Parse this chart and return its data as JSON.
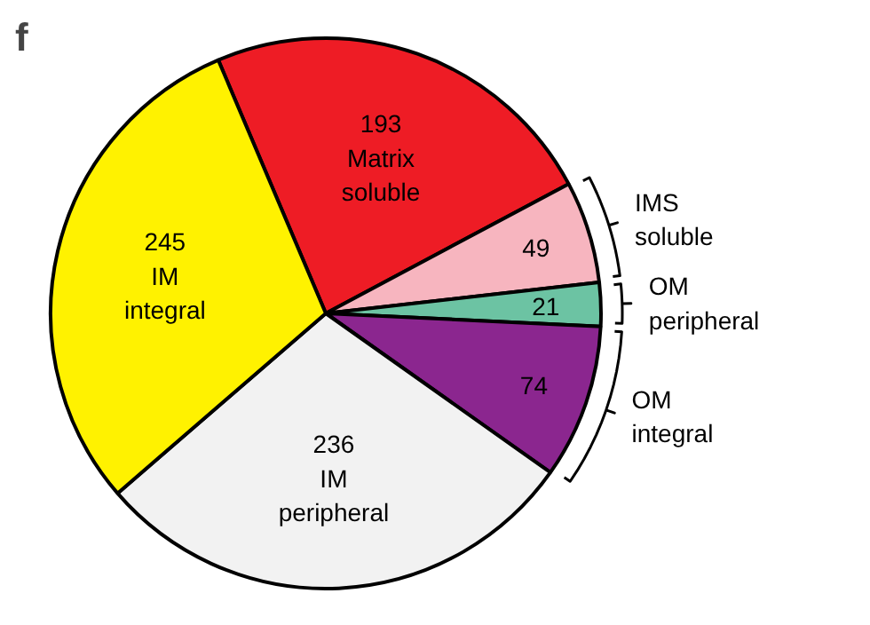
{
  "chart_data": {
    "type": "pie",
    "title": "f",
    "categories": [
      "Matrix soluble",
      "IMS soluble",
      "OM peripheral",
      "OM integral",
      "IM peripheral",
      "IM integral"
    ],
    "values": [
      193,
      49,
      21,
      74,
      236,
      245
    ],
    "colors": [
      "#ee1c25",
      "#f7b5bf",
      "#6cc3a3",
      "#8b268f",
      "#f2f2f2",
      "#fff200"
    ],
    "data_labels": true
  }
}
